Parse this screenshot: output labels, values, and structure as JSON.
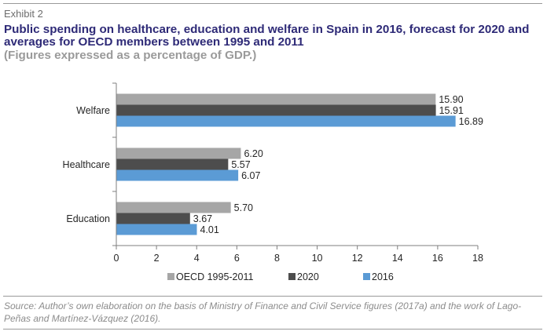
{
  "header": {
    "exhibit": "Exhibit 2",
    "title": "Public spending on healthcare, education and welfare in Spain in 2016, forecast for 2020 and averages for OECD members between 1995 and 2011",
    "subtitle": "(Figures expressed as a percentage of GDP.)"
  },
  "chart_data": {
    "type": "bar",
    "orientation": "horizontal",
    "categories": [
      "Welfare",
      "Healthcare",
      "Education"
    ],
    "series": [
      {
        "name": "OECD 1995-2011",
        "color": "#a6a6a6",
        "values": [
          15.9,
          6.2,
          5.7
        ],
        "labels": [
          "15.90",
          "6.20",
          "5.70"
        ]
      },
      {
        "name": "2020",
        "color": "#4d4d4d",
        "values": [
          15.91,
          5.57,
          3.67
        ],
        "labels": [
          "15.91",
          "5.57",
          "3.67"
        ]
      },
      {
        "name": "2016",
        "color": "#5b9bd5",
        "values": [
          16.89,
          6.07,
          4.01
        ],
        "labels": [
          "16.89",
          "6.07",
          "4.01"
        ]
      }
    ],
    "xlim": [
      0,
      18
    ],
    "xticks": [
      "0",
      "2",
      "4",
      "6",
      "8",
      "10",
      "12",
      "14",
      "16",
      "18"
    ],
    "grid": false,
    "legend": "bottom"
  },
  "footer": {
    "source": "Source: Author’s own elaboration on the basis of Ministry of Finance and Civil Service figures (2017a) and the work of Lago-Peñas and Martínez-Vázquez (2016)."
  }
}
